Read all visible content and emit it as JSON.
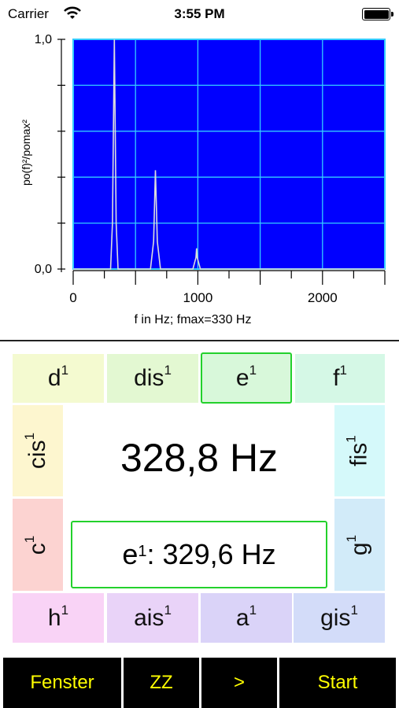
{
  "status_bar": {
    "carrier": "Carrier",
    "time": "3:55 PM"
  },
  "chart_data": {
    "type": "line",
    "ylabel": "po(f)²/pomax²",
    "xlabel": "f in Hz; fmax=330 Hz",
    "ylim": [
      0,
      1
    ],
    "xlim": [
      0,
      2500
    ],
    "x_ticks": [
      0,
      1000,
      2000
    ],
    "y_tick_labels": [
      "0,0",
      "1,0"
    ],
    "grid": true,
    "background_color": "#0000ff",
    "grid_color": "#33ccff",
    "line_color": "#dddddd",
    "series": [
      {
        "x": [
          0,
          300,
          315,
          330,
          345,
          360,
          620,
          645,
          660,
          675,
          700,
          960,
          985,
          990,
          995,
          1020,
          2500
        ],
        "y": [
          0,
          0,
          0.2,
          1.0,
          0.2,
          0,
          0,
          0.12,
          0.43,
          0.12,
          0,
          0,
          0.05,
          0.09,
          0.05,
          0,
          0
        ]
      }
    ]
  },
  "notes": {
    "d1": {
      "base": "d",
      "sup": "1",
      "color": "#f4fad0"
    },
    "dis1": {
      "base": "dis",
      "sup": "1",
      "color": "#e3f8d2"
    },
    "e1": {
      "base": "e",
      "sup": "1",
      "color": "#d8f8da"
    },
    "f1": {
      "base": "f",
      "sup": "1",
      "color": "#d5f8e6"
    },
    "cis1": {
      "base": "cis",
      "sup": "1",
      "color": "#fdf6cf"
    },
    "fis1": {
      "base": "fis",
      "sup": "1",
      "color": "#d5f9fa"
    },
    "c1": {
      "base": "c",
      "sup": "1",
      "color": "#fcd3d1"
    },
    "g1": {
      "base": "g",
      "sup": "1",
      "color": "#d2ebf9"
    },
    "h1": {
      "base": "h",
      "sup": "1",
      "color": "#f9d3f6"
    },
    "ais1": {
      "base": "ais",
      "sup": "1",
      "color": "#e9d3f8"
    },
    "a1": {
      "base": "a",
      "sup": "1",
      "color": "#dad3f8"
    },
    "gis1": {
      "base": "gis",
      "sup": "1",
      "color": "#d3dcf9"
    }
  },
  "measured": {
    "frequency": "328,8 Hz"
  },
  "target": {
    "note": "e",
    "sup": "1",
    "frequency": ": 329,6 Hz",
    "border_color": "#23d12c"
  },
  "toolbar": {
    "fenster": "Fenster",
    "zz": "ZZ",
    "next": ">",
    "start": "Start"
  }
}
